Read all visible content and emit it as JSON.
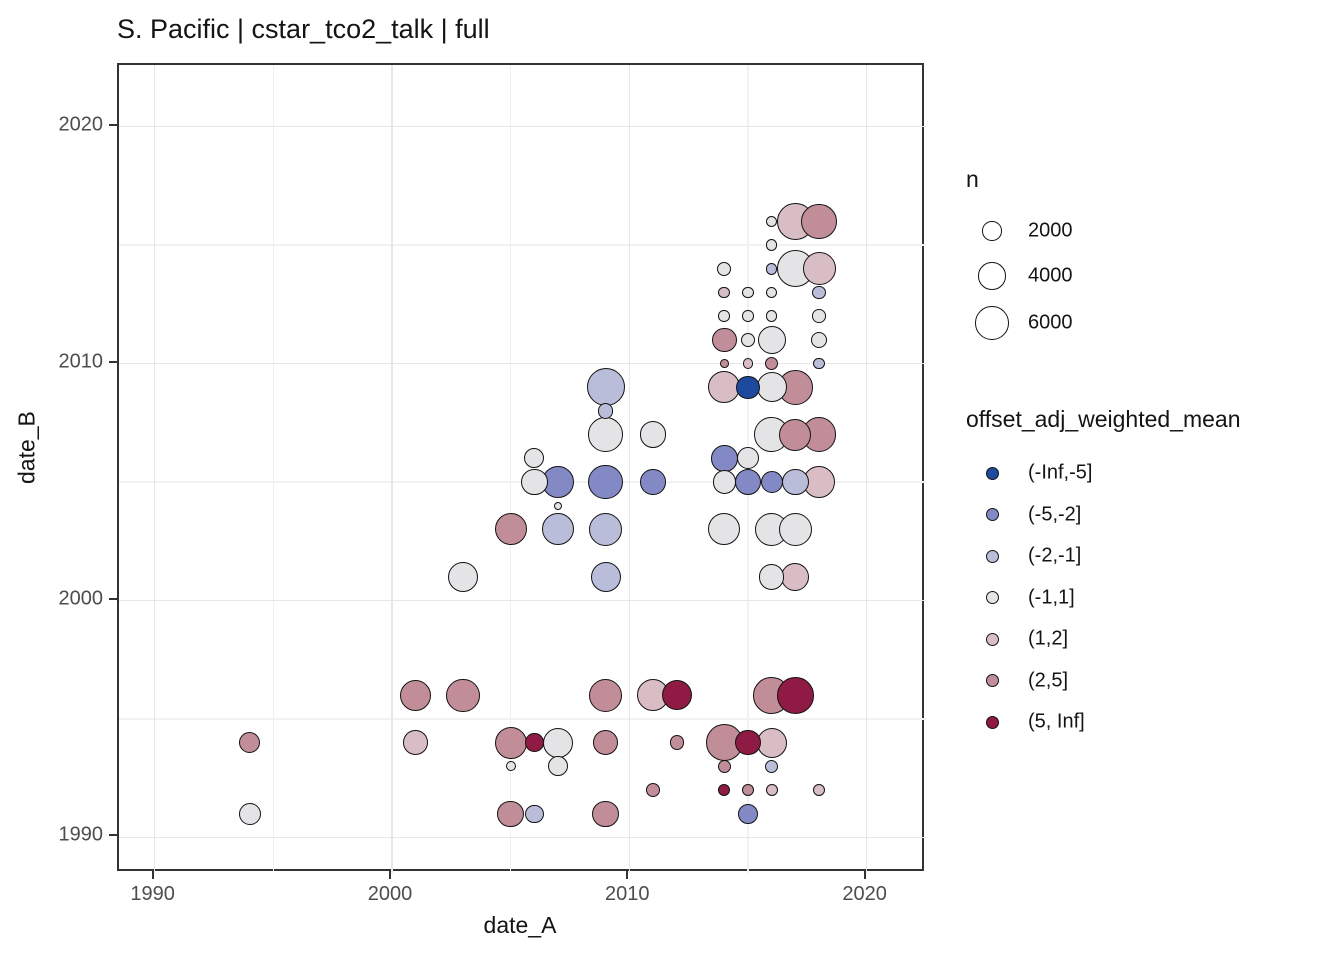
{
  "chart_data": {
    "type": "scatter",
    "title": "S. Pacific | cstar_tco2_talk | full",
    "xlabel": "date_A",
    "ylabel": "date_B",
    "x_domain": [
      1988.5,
      2022.5
    ],
    "y_domain": [
      1988.5,
      2022.6
    ],
    "x_major_ticks": [
      1990,
      2000,
      2010,
      2020
    ],
    "x_minor_ticks": [
      1995,
      2005,
      2015
    ],
    "y_major_ticks": [
      1990,
      2000,
      2010,
      2020
    ],
    "y_minor_ticks": [
      1995,
      2005,
      2015
    ],
    "grid": "on",
    "size_scale_k": 0.218,
    "size_legend": {
      "title": "n",
      "items": [
        2000,
        4000,
        6000
      ]
    },
    "color_legend": {
      "title": "offset_adj_weighted_mean",
      "items": [
        {
          "label": "(-Inf,-5]",
          "color": "#1d4a9e"
        },
        {
          "label": "(-5,-2]",
          "color": "#8289c4"
        },
        {
          "label": "(-2,-1]",
          "color": "#b9bdd9"
        },
        {
          "label": "(-1,1]",
          "color": "#e4e4e6"
        },
        {
          "label": "(1,2]",
          "color": "#d9bdc5"
        },
        {
          "label": "(2,5]",
          "color": "#c18d98"
        },
        {
          "label": "(5, Inf]",
          "color": "#8f1a43"
        }
      ]
    },
    "points": [
      {
        "date_A": 1994,
        "date_B": 1991,
        "n": 2550,
        "bin": "(-1,1]"
      },
      {
        "date_A": 2005,
        "date_B": 1991,
        "n": 3700,
        "bin": "(2,5]"
      },
      {
        "date_A": 2006,
        "date_B": 1991,
        "n": 1800,
        "bin": "(-2,-1]"
      },
      {
        "date_A": 2009,
        "date_B": 1991,
        "n": 3700,
        "bin": "(2,5]"
      },
      {
        "date_A": 2015,
        "date_B": 1991,
        "n": 2100,
        "bin": "(-5,-2]"
      },
      {
        "date_A": 2011,
        "date_B": 1992,
        "n": 1100,
        "bin": "(2,5]"
      },
      {
        "date_A": 2014,
        "date_B": 1992,
        "n": 750,
        "bin": "(5, Inf]"
      },
      {
        "date_A": 2015,
        "date_B": 1992,
        "n": 750,
        "bin": "(2,5]"
      },
      {
        "date_A": 2016,
        "date_B": 1992,
        "n": 750,
        "bin": "(1,2]"
      },
      {
        "date_A": 2018,
        "date_B": 1992,
        "n": 750,
        "bin": "(1,2]"
      },
      {
        "date_A": 2005,
        "date_B": 1993,
        "n": 550,
        "bin": "(-1,1]"
      },
      {
        "date_A": 2007,
        "date_B": 1993,
        "n": 2100,
        "bin": "(-1,1]"
      },
      {
        "date_A": 2014,
        "date_B": 1993,
        "n": 950,
        "bin": "(2,5]"
      },
      {
        "date_A": 2016,
        "date_B": 1993,
        "n": 950,
        "bin": "(-2,-1]"
      },
      {
        "date_A": 1994,
        "date_B": 1994,
        "n": 2400,
        "bin": "(2,5]"
      },
      {
        "date_A": 2001,
        "date_B": 1994,
        "n": 3200,
        "bin": "(1,2]"
      },
      {
        "date_A": 2005,
        "date_B": 1994,
        "n": 5400,
        "bin": "(2,5]"
      },
      {
        "date_A": 2006,
        "date_B": 1994,
        "n": 1800,
        "bin": "(5, Inf]"
      },
      {
        "date_A": 2007,
        "date_B": 1994,
        "n": 4750,
        "bin": "(-1,1]"
      },
      {
        "date_A": 2009,
        "date_B": 1994,
        "n": 3400,
        "bin": "(2,5]"
      },
      {
        "date_A": 2012,
        "date_B": 1994,
        "n": 1100,
        "bin": "(2,5]"
      },
      {
        "date_A": 2014,
        "date_B": 1994,
        "n": 7050,
        "bin": "(2,5]"
      },
      {
        "date_A": 2015,
        "date_B": 1994,
        "n": 3400,
        "bin": "(5, Inf]"
      },
      {
        "date_A": 2016,
        "date_B": 1994,
        "n": 4750,
        "bin": "(1,2]"
      },
      {
        "date_A": 2001,
        "date_B": 1996,
        "n": 5200,
        "bin": "(2,5]"
      },
      {
        "date_A": 2003,
        "date_B": 1996,
        "n": 5850,
        "bin": "(2,5]"
      },
      {
        "date_A": 2009,
        "date_B": 1996,
        "n": 5700,
        "bin": "(2,5]"
      },
      {
        "date_A": 2011,
        "date_B": 1996,
        "n": 5400,
        "bin": "(1,2]"
      },
      {
        "date_A": 2012,
        "date_B": 1996,
        "n": 4750,
        "bin": "(5, Inf]"
      },
      {
        "date_A": 2016,
        "date_B": 1996,
        "n": 7050,
        "bin": "(2,5]"
      },
      {
        "date_A": 2017,
        "date_B": 1996,
        "n": 7050,
        "bin": "(5, Inf]"
      },
      {
        "date_A": 2003,
        "date_B": 2001,
        "n": 4750,
        "bin": "(-1,1]"
      },
      {
        "date_A": 2009,
        "date_B": 2001,
        "n": 4750,
        "bin": "(-2,-1]"
      },
      {
        "date_A": 2016,
        "date_B": 2001,
        "n": 3400,
        "bin": "(-1,1]"
      },
      {
        "date_A": 2017,
        "date_B": 2001,
        "n": 4100,
        "bin": "(1,2]"
      },
      {
        "date_A": 2005,
        "date_B": 2003,
        "n": 5400,
        "bin": "(2,5]"
      },
      {
        "date_A": 2007,
        "date_B": 2003,
        "n": 5400,
        "bin": "(-2,-1]"
      },
      {
        "date_A": 2009,
        "date_B": 2003,
        "n": 5850,
        "bin": "(-2,-1]"
      },
      {
        "date_A": 2014,
        "date_B": 2003,
        "n": 5400,
        "bin": "(-1,1]"
      },
      {
        "date_A": 2016,
        "date_B": 2003,
        "n": 5850,
        "bin": "(-1,1]"
      },
      {
        "date_A": 2017,
        "date_B": 2003,
        "n": 5850,
        "bin": "(-1,1]"
      },
      {
        "date_A": 2007,
        "date_B": 2004,
        "n": 350,
        "bin": "(-1,1]"
      },
      {
        "date_A": 2006,
        "date_B": 2005,
        "n": 3700,
        "bin": "(-1,1]"
      },
      {
        "date_A": 2007,
        "date_B": 2005,
        "n": 5400,
        "bin": "(-5,-2]"
      },
      {
        "date_A": 2009,
        "date_B": 2005,
        "n": 6300,
        "bin": "(-5,-2]"
      },
      {
        "date_A": 2011,
        "date_B": 2005,
        "n": 3400,
        "bin": "(-5,-2]"
      },
      {
        "date_A": 2014,
        "date_B": 2005,
        "n": 2900,
        "bin": "(-1,1]"
      },
      {
        "date_A": 2015,
        "date_B": 2005,
        "n": 3700,
        "bin": "(-5,-2]"
      },
      {
        "date_A": 2016,
        "date_B": 2005,
        "n": 2550,
        "bin": "(-5,-2]"
      },
      {
        "date_A": 2017,
        "date_B": 2005,
        "n": 3700,
        "bin": "(-2,-1]"
      },
      {
        "date_A": 2018,
        "date_B": 2005,
        "n": 5400,
        "bin": "(1,2]"
      },
      {
        "date_A": 2006,
        "date_B": 2006,
        "n": 2100,
        "bin": "(-1,1]"
      },
      {
        "date_A": 2014,
        "date_B": 2006,
        "n": 3700,
        "bin": "(-5,-2]"
      },
      {
        "date_A": 2015,
        "date_B": 2006,
        "n": 2550,
        "bin": "(-1,1]"
      },
      {
        "date_A": 2009,
        "date_B": 2007,
        "n": 6300,
        "bin": "(-1,1]"
      },
      {
        "date_A": 2011,
        "date_B": 2007,
        "n": 3700,
        "bin": "(-1,1]"
      },
      {
        "date_A": 2016,
        "date_B": 2007,
        "n": 6300,
        "bin": "(-1,1]"
      },
      {
        "date_A": 2017,
        "date_B": 2007,
        "n": 5400,
        "bin": "(2,5]"
      },
      {
        "date_A": 2018,
        "date_B": 2007,
        "n": 6300,
        "bin": "(2,5]"
      },
      {
        "date_A": 2009,
        "date_B": 2008,
        "n": 1250,
        "bin": "(-2,-1]"
      },
      {
        "date_A": 2009,
        "date_B": 2009,
        "n": 7600,
        "bin": "(-2,-1]"
      },
      {
        "date_A": 2014,
        "date_B": 2009,
        "n": 5400,
        "bin": "(1,2]"
      },
      {
        "date_A": 2015,
        "date_B": 2009,
        "n": 2900,
        "bin": "(-Inf,-5]"
      },
      {
        "date_A": 2016,
        "date_B": 2009,
        "n": 4750,
        "bin": "(-1,1]"
      },
      {
        "date_A": 2017,
        "date_B": 2009,
        "n": 6300,
        "bin": "(2,5]"
      },
      {
        "date_A": 2014,
        "date_B": 2010,
        "n": 400,
        "bin": "(2,5]"
      },
      {
        "date_A": 2015,
        "date_B": 2010,
        "n": 550,
        "bin": "(1,2]"
      },
      {
        "date_A": 2016,
        "date_B": 2010,
        "n": 950,
        "bin": "(2,5]"
      },
      {
        "date_A": 2018,
        "date_B": 2010,
        "n": 700,
        "bin": "(-2,-1]"
      },
      {
        "date_A": 2014,
        "date_B": 2011,
        "n": 3200,
        "bin": "(2,5]"
      },
      {
        "date_A": 2015,
        "date_B": 2011,
        "n": 1100,
        "bin": "(-1,1]"
      },
      {
        "date_A": 2016,
        "date_B": 2011,
        "n": 4100,
        "bin": "(-1,1]"
      },
      {
        "date_A": 2018,
        "date_B": 2011,
        "n": 1450,
        "bin": "(-1,1]"
      },
      {
        "date_A": 2014,
        "date_B": 2012,
        "n": 700,
        "bin": "(-1,1]"
      },
      {
        "date_A": 2015,
        "date_B": 2012,
        "n": 700,
        "bin": "(-1,1]"
      },
      {
        "date_A": 2016,
        "date_B": 2012,
        "n": 700,
        "bin": "(-1,1]"
      },
      {
        "date_A": 2018,
        "date_B": 2012,
        "n": 950,
        "bin": "(-1,1]"
      },
      {
        "date_A": 2014,
        "date_B": 2013,
        "n": 700,
        "bin": "(1,2]"
      },
      {
        "date_A": 2015,
        "date_B": 2013,
        "n": 700,
        "bin": "(-1,1]"
      },
      {
        "date_A": 2016,
        "date_B": 2013,
        "n": 700,
        "bin": "(-1,1]"
      },
      {
        "date_A": 2018,
        "date_B": 2013,
        "n": 950,
        "bin": "(-2,-1]"
      },
      {
        "date_A": 2014,
        "date_B": 2014,
        "n": 1100,
        "bin": "(-1,1]"
      },
      {
        "date_A": 2016,
        "date_B": 2014,
        "n": 700,
        "bin": "(-2,-1]"
      },
      {
        "date_A": 2017,
        "date_B": 2014,
        "n": 7050,
        "bin": "(-1,1]"
      },
      {
        "date_A": 2018,
        "date_B": 2014,
        "n": 5850,
        "bin": "(1,2]"
      },
      {
        "date_A": 2016,
        "date_B": 2015,
        "n": 700,
        "bin": "(-1,1]"
      },
      {
        "date_A": 2016,
        "date_B": 2016,
        "n": 700,
        "bin": "(-1,1]"
      },
      {
        "date_A": 2017,
        "date_B": 2016,
        "n": 7050,
        "bin": "(1,2]"
      },
      {
        "date_A": 2018,
        "date_B": 2016,
        "n": 6600,
        "bin": "(2,5]"
      }
    ]
  }
}
